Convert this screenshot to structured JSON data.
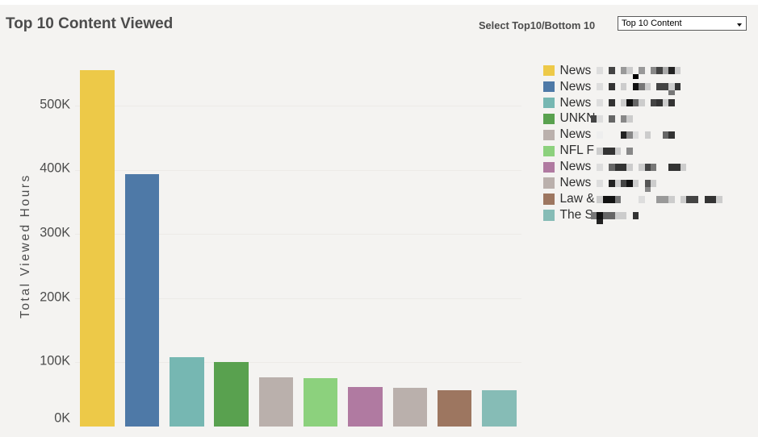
{
  "window": {
    "background_color": "#f4f3f1",
    "top_strip_color": "#ffffff"
  },
  "header": {
    "title": "Top 10 Content Viewed"
  },
  "param_control": {
    "label": "Select Top10/Bottom 10",
    "dropdown_value": "Top 10 Content",
    "dropdown_icon": "caret-down"
  },
  "chart_data": {
    "type": "bar",
    "title": "Top 10 Content Viewed",
    "xlabel": "",
    "ylabel": "Total Viewed Hours",
    "ylim": [
      0,
      560000
    ],
    "yticks": [
      {
        "label": "0K",
        "value": 0
      },
      {
        "label": "100K",
        "value": 100000
      },
      {
        "label": "200K",
        "value": 200000
      },
      {
        "label": "300K",
        "value": 300000
      },
      {
        "label": "400K",
        "value": 400000
      },
      {
        "label": "500K",
        "value": 500000
      }
    ],
    "grid": true,
    "legend_position": "right",
    "unit": "viewed hours",
    "categories": [
      "News",
      "News",
      "News",
      "UNKN",
      "News",
      "NFL F",
      "News",
      "News",
      "Law &",
      "The S"
    ],
    "values": [
      555000,
      394000,
      108500,
      101000,
      77000,
      75000,
      62000,
      60000,
      57000,
      57000
    ],
    "colors": [
      "#EDC948",
      "#4E79A7",
      "#76B7B2",
      "#59A14F",
      "#BAB0AC",
      "#8CD17D",
      "#B07AA1",
      "#BAB0AC",
      "#9D7660",
      "#86BCB6"
    ]
  },
  "legend": {
    "items": [
      {
        "visible_text": "News",
        "redacted": true,
        "color": "#EDC948",
        "pattern": ".d.4.9c.9.84a2c",
        "pattern_low": ".......0"
      },
      {
        "visible_text": "News",
        "redacted": true,
        "color": "#4E79A7",
        "pattern": ".d.3.c.17c.44c3",
        "pattern_low": ".............7"
      },
      {
        "visible_text": "News",
        "redacted": true,
        "color": "#76B7B2",
        "pattern": ".d.3.c16c.43c3"
      },
      {
        "visible_text": "UNKN",
        "redacted": true,
        "color": "#59A14F",
        "pattern": "4d.6.8c"
      },
      {
        "visible_text": "News",
        "redacted": true,
        "color": "#BAB0AC",
        "pattern": ".e...28d.c..63"
      },
      {
        "visible_text": "NFL F",
        "redacted": true,
        "color": "#8CD17D",
        "pattern": ".c33c.8"
      },
      {
        "visible_text": "News",
        "redacted": true,
        "color": "#B07AA1",
        "pattern": ".d.633c.c47..33c"
      },
      {
        "visible_text": "News",
        "redacted": true,
        "color": "#BAB0AC",
        "pattern": ".d.2c41c.5c",
        "pattern_low": ".........8"
      },
      {
        "visible_text": "Law &",
        "redacted": true,
        "color": "#9D7660",
        "pattern": ".c117...d..99c.c44.33c"
      },
      {
        "visible_text": "The S",
        "redacted": true,
        "color": "#86BCB6",
        "pattern": "7166cc.3",
        "pattern_low": ".2"
      }
    ]
  }
}
